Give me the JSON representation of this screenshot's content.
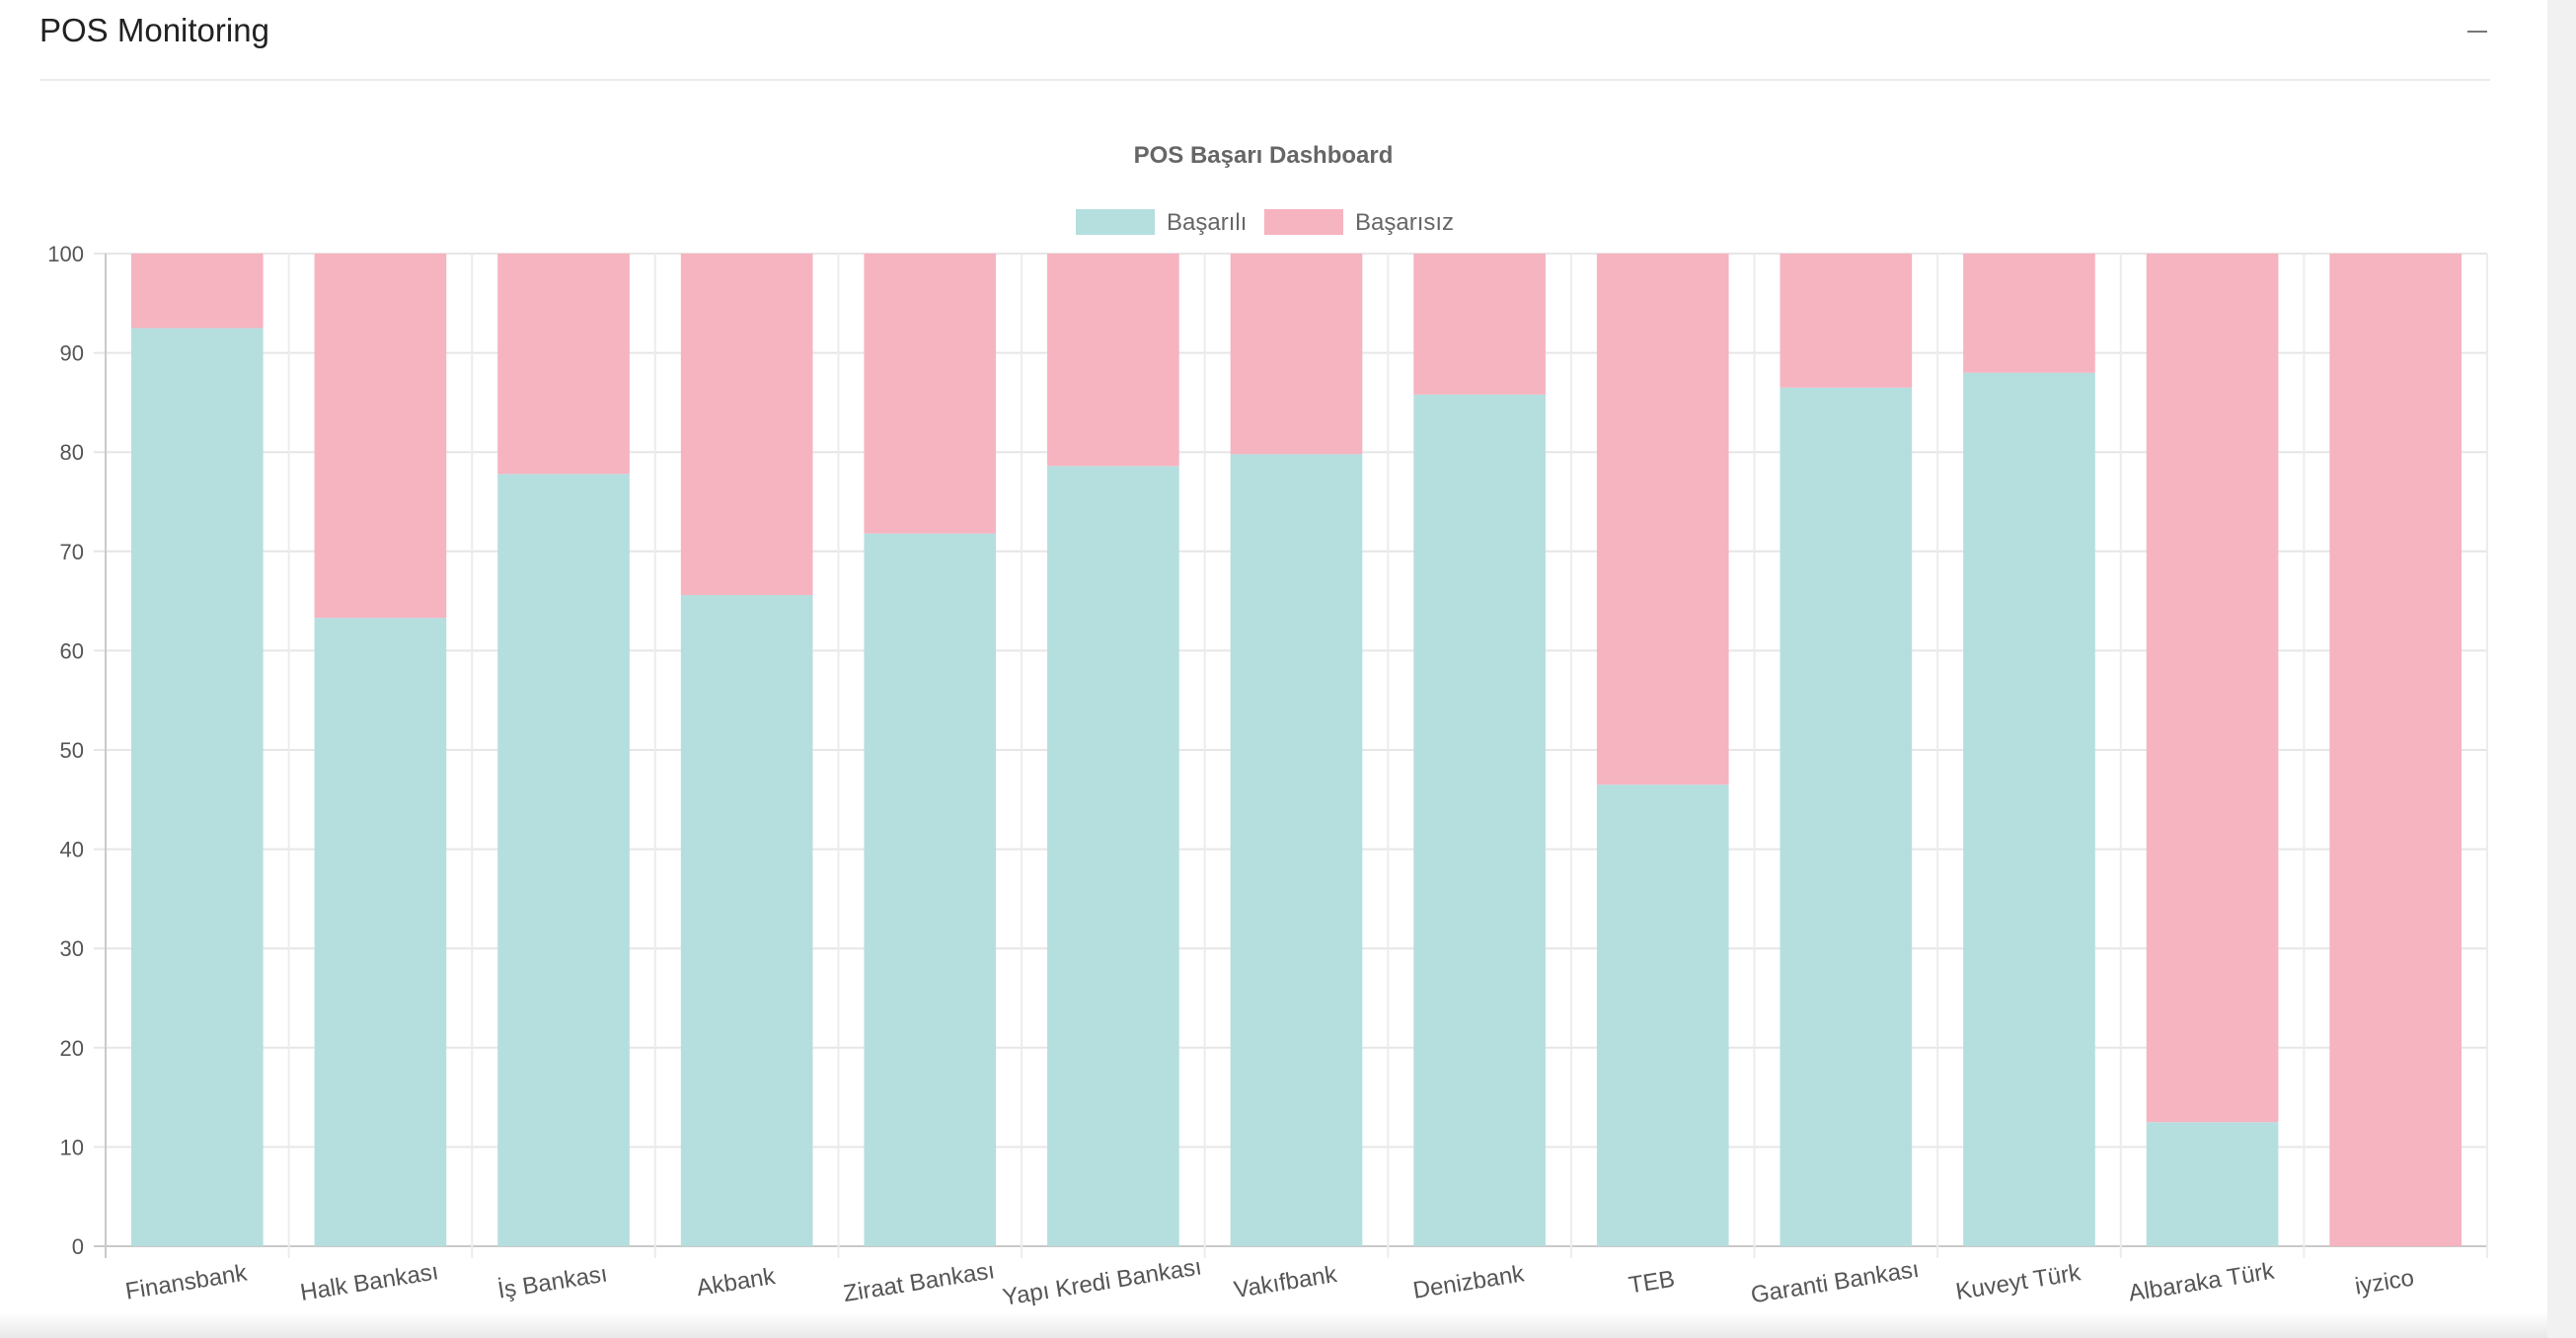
{
  "panel": {
    "title": "POS Monitoring",
    "collapse_icon": "minus-icon"
  },
  "chart_data": {
    "type": "bar",
    "stacked": true,
    "title": "POS Başarı Dashboard",
    "categories": [
      "Finansbank",
      "Halk Bankası",
      "İş Bankası",
      "Akbank",
      "Ziraat Bankası",
      "Yapı Kredi Bankası",
      "Vakıfbank",
      "Denizbank",
      "TEB",
      "Garanti Bankası",
      "Kuveyt Türk",
      "Albaraka Türk",
      "iyzico"
    ],
    "series": [
      {
        "name": "Başarılı",
        "color": "#b5dedf",
        "values": [
          92.5,
          63.3,
          77.8,
          65.6,
          71.8,
          78.6,
          79.8,
          85.8,
          46.5,
          86.5,
          88.0,
          12.5,
          0
        ]
      },
      {
        "name": "Başarısız",
        "color": "#f6b3c0",
        "values": [
          7.5,
          36.7,
          22.2,
          34.4,
          28.2,
          21.4,
          20.2,
          14.2,
          53.5,
          13.5,
          12.0,
          87.5,
          100
        ]
      }
    ],
    "legend_position": "top",
    "xlabel": "",
    "ylabel": "",
    "ylim": [
      0,
      100
    ],
    "yticks": [
      "0",
      "10",
      "20",
      "30",
      "40",
      "50",
      "60",
      "70",
      "80",
      "90",
      "100"
    ],
    "grid": true
  }
}
